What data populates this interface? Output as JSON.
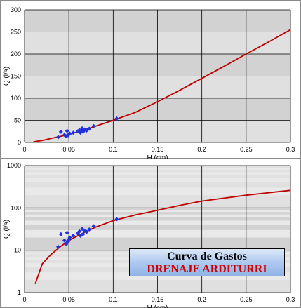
{
  "legend": {
    "line1": "Curva de Gastos",
    "line2": "DRENAJE ARDITURRI"
  },
  "chart_data": [
    {
      "type": "scatter",
      "title": "",
      "xlabel": "H (cm)",
      "ylabel": "Q (l/s)",
      "xlim": [
        0,
        0.3
      ],
      "ylim": [
        0,
        300
      ],
      "x_ticks": [
        "0",
        "0.05",
        "0.1",
        "0.15",
        "0.2",
        "0.25",
        "0.3"
      ],
      "y_ticks": [
        "0",
        "50",
        "100",
        "150",
        "200",
        "250",
        "300"
      ],
      "y_scale": "linear",
      "grid": true,
      "series": [
        {
          "type": "scatter",
          "color": "#2233dd",
          "x": [
            0.038,
            0.041,
            0.045,
            0.047,
            0.048,
            0.049,
            0.05,
            0.051,
            0.055,
            0.06,
            0.062,
            0.063,
            0.065,
            0.066,
            0.068,
            0.07,
            0.073,
            0.078,
            0.104
          ],
          "y": [
            12,
            24,
            17,
            14,
            26,
            16,
            18,
            20,
            22,
            25,
            28,
            22,
            32,
            24,
            29,
            27,
            31,
            37,
            54
          ]
        },
        {
          "type": "line",
          "color": "#c00000",
          "x": [
            0.01,
            0.02,
            0.03,
            0.05,
            0.07,
            0.1,
            0.125,
            0.15,
            0.175,
            0.2,
            0.225,
            0.25,
            0.275,
            0.3
          ],
          "y": [
            1.5,
            4.5,
            9,
            18,
            30,
            50,
            68,
            92,
            118,
            145,
            172,
            200,
            227,
            255
          ]
        }
      ]
    },
    {
      "type": "scatter",
      "title": "",
      "xlabel": "H (cm)",
      "ylabel": "Q (l/s)",
      "xlim": [
        0,
        0.3
      ],
      "ylim": [
        1,
        1000
      ],
      "x_ticks": [
        "0",
        "0.05",
        "0.1",
        "0.15",
        "0.2",
        "0.25",
        "0.3"
      ],
      "y_ticks": [
        "1",
        "10",
        "100",
        "1000"
      ],
      "y_scale": "log",
      "grid": true,
      "series": [
        {
          "type": "scatter",
          "color": "#2233dd",
          "x": [
            0.038,
            0.041,
            0.045,
            0.047,
            0.048,
            0.049,
            0.05,
            0.051,
            0.055,
            0.06,
            0.062,
            0.063,
            0.065,
            0.066,
            0.068,
            0.07,
            0.073,
            0.078,
            0.104
          ],
          "y": [
            12,
            24,
            17,
            14,
            26,
            16,
            18,
            20,
            22,
            25,
            28,
            22,
            32,
            24,
            29,
            27,
            31,
            37,
            54
          ]
        },
        {
          "type": "line",
          "color": "#c00000",
          "x": [
            0.012,
            0.02,
            0.03,
            0.04,
            0.05,
            0.06,
            0.07,
            0.08,
            0.1,
            0.125,
            0.15,
            0.175,
            0.2,
            0.225,
            0.25,
            0.275,
            0.3
          ],
          "y": [
            1.6,
            4.8,
            8,
            12,
            17,
            22,
            28,
            35,
            50,
            68,
            88,
            115,
            145,
            170,
            200,
            228,
            260
          ]
        }
      ]
    }
  ]
}
